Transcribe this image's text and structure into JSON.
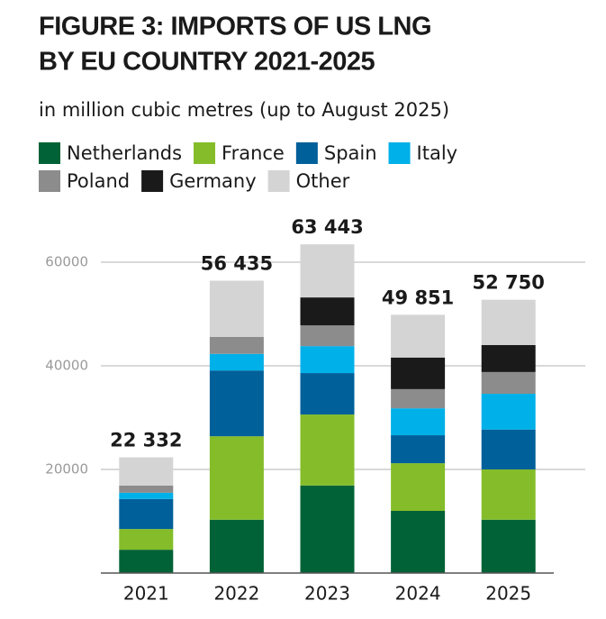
{
  "chart_data": {
    "type": "stacked-bar",
    "title": [
      "FIGURE 3: IMPORTS OF US LNG",
      "BY EU COUNTRY 2021-2025"
    ],
    "subtitle": "in million cubic metres (up to August 2025)",
    "categories": [
      "2021",
      "2022",
      "2023",
      "2024",
      "2025"
    ],
    "series": [
      {
        "name": "Netherlands",
        "color": "#006236",
        "values": [
          4500,
          10300,
          16900,
          12000,
          10300
        ]
      },
      {
        "name": "France",
        "color": "#84bd29",
        "values": [
          4000,
          16100,
          13700,
          9200,
          9700
        ]
      },
      {
        "name": "Spain",
        "color": "#00609a",
        "values": [
          5800,
          12700,
          8000,
          5400,
          7700
        ]
      },
      {
        "name": "Italy",
        "color": "#00b0e8",
        "values": [
          1200,
          3200,
          5200,
          5200,
          6900
        ]
      },
      {
        "name": "Poland",
        "color": "#8c8c8c",
        "values": [
          1400,
          3300,
          4000,
          3700,
          4200
        ]
      },
      {
        "name": "Germany",
        "color": "#1a1a1a",
        "values": [
          0,
          0,
          5400,
          6100,
          5200
        ]
      },
      {
        "name": "Other",
        "color": "#d4d4d4",
        "values": [
          5432,
          10835,
          10243,
          8251,
          8750
        ]
      }
    ],
    "totals": {
      "values": [
        22332,
        56435,
        63443,
        49851,
        52750
      ],
      "value_labels": [
        "22 332",
        "56 435",
        "63 443",
        "49 851",
        "52 750"
      ]
    },
    "ylim": [
      0,
      68000
    ],
    "yticks": [
      20000,
      40000,
      60000
    ],
    "grid": true
  }
}
